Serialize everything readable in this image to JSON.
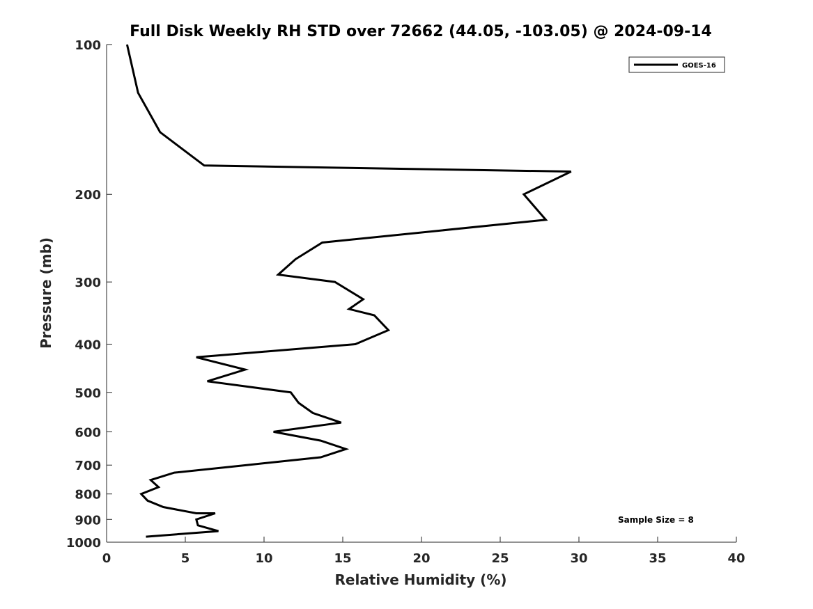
{
  "chart_data": {
    "type": "line",
    "title": "Full Disk Weekly RH STD over 72662 (44.05, -103.05) @ 2024-09-14",
    "xlabel": "Relative Humidity (%)",
    "ylabel": "Pressure (mb)",
    "xlim": [
      0,
      40
    ],
    "ylim": [
      100,
      1000
    ],
    "y_scale": "log",
    "y_reversed": true,
    "xticks": [
      0,
      5,
      10,
      15,
      20,
      25,
      30,
      35,
      40
    ],
    "yticks": [
      100,
      200,
      300,
      400,
      500,
      600,
      700,
      800,
      900,
      1000
    ],
    "grid": false,
    "legend_position": "top-right",
    "annotation": "Sample Size = 8",
    "series": [
      {
        "name": "GOES-16",
        "color": "#000000",
        "points": [
          [
            1.3,
            100
          ],
          [
            2.0,
            125
          ],
          [
            3.4,
            150
          ],
          [
            6.2,
            175
          ],
          [
            29.5,
            180
          ],
          [
            26.5,
            200
          ],
          [
            27.9,
            225
          ],
          [
            13.7,
            250
          ],
          [
            12.0,
            270
          ],
          [
            10.9,
            290
          ],
          [
            14.5,
            300
          ],
          [
            16.3,
            325
          ],
          [
            15.4,
            340
          ],
          [
            17.0,
            350
          ],
          [
            17.9,
            375
          ],
          [
            15.8,
            400
          ],
          [
            5.7,
            425
          ],
          [
            8.8,
            450
          ],
          [
            6.4,
            475
          ],
          [
            11.7,
            500
          ],
          [
            12.2,
            525
          ],
          [
            13.1,
            550
          ],
          [
            14.9,
            575
          ],
          [
            10.6,
            600
          ],
          [
            13.6,
            625
          ],
          [
            15.2,
            650
          ],
          [
            13.6,
            675
          ],
          [
            8.9,
            700
          ],
          [
            4.3,
            725
          ],
          [
            2.8,
            750
          ],
          [
            3.3,
            775
          ],
          [
            2.2,
            800
          ],
          [
            2.6,
            825
          ],
          [
            3.6,
            850
          ],
          [
            5.7,
            875
          ],
          [
            6.9,
            875
          ],
          [
            5.7,
            900
          ],
          [
            5.8,
            925
          ],
          [
            7.1,
            950
          ],
          [
            2.5,
            975
          ]
        ]
      }
    ]
  }
}
